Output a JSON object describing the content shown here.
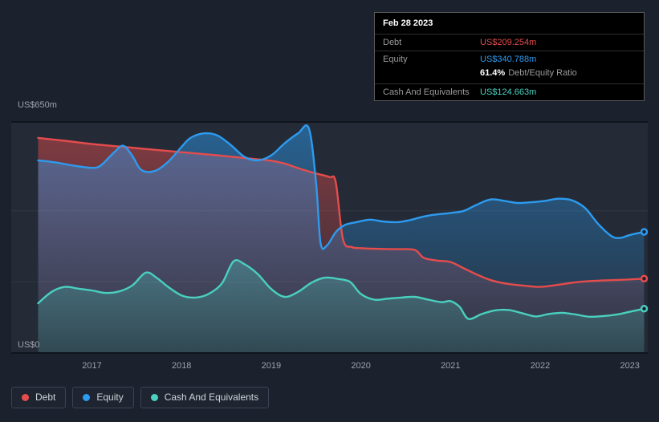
{
  "colors": {
    "background": "#1b222d",
    "plot_bg": "rgba(255,255,255,0.045)",
    "grid_strong": "#10141d",
    "grid_faint": "rgba(255,255,255,0.06)",
    "axis_text": "#9ba3af",
    "debt": "#e64c4c",
    "equity": "#2d9bf0",
    "cash": "#49d0bf",
    "tooltip_bg": "#000000",
    "tooltip_border": "#5a5a5a",
    "tooltip_label": "#9b9b9b",
    "legend_border": "#3a4354",
    "legend_text": "#ced3da"
  },
  "tooltip": {
    "date": "Feb 28 2023",
    "rows": [
      {
        "label": "Debt",
        "value": "US$209.254m",
        "color_key": "debt"
      },
      {
        "label": "Equity",
        "value": "US$340.788m",
        "color_key": "equity"
      },
      {
        "label": "Cash And Equivalents",
        "value": "US$124.663m",
        "color_key": "cash"
      }
    ],
    "ratio_value": "61.4%",
    "ratio_label": "Debt/Equity Ratio"
  },
  "legend": [
    {
      "label": "Debt",
      "color_key": "debt"
    },
    {
      "label": "Equity",
      "color_key": "equity"
    },
    {
      "label": "Cash And Equivalents",
      "color_key": "cash"
    }
  ],
  "chart_data": {
    "type": "area",
    "x_unit": "year",
    "xlim": [
      2016.1,
      2023.2
    ],
    "ylim": [
      0,
      650
    ],
    "x_ticks": [
      2017,
      2018,
      2019,
      2020,
      2021,
      2022,
      2023
    ],
    "y_axis_labels": {
      "top": "US$650m",
      "bottom": "US$0"
    },
    "grid_values": [
      200,
      400
    ],
    "legend_position": "bottom-left",
    "series": [
      {
        "name": "Debt",
        "color_key": "debt",
        "fill_opacity": [
          0.5,
          0.04
        ],
        "points": [
          [
            2016.4,
            605
          ],
          [
            2016.7,
            597
          ],
          [
            2017.0,
            588
          ],
          [
            2017.3,
            581
          ],
          [
            2017.6,
            574
          ],
          [
            2018.0,
            565
          ],
          [
            2018.4,
            556
          ],
          [
            2018.8,
            546
          ],
          [
            2019.0,
            541
          ],
          [
            2019.15,
            533
          ],
          [
            2019.3,
            520
          ],
          [
            2019.5,
            505
          ],
          [
            2019.65,
            495
          ],
          [
            2019.72,
            480
          ],
          [
            2019.8,
            320
          ],
          [
            2019.9,
            298
          ],
          [
            2020.0,
            295
          ],
          [
            2020.2,
            293
          ],
          [
            2020.4,
            292
          ],
          [
            2020.6,
            290
          ],
          [
            2020.7,
            268
          ],
          [
            2020.85,
            260
          ],
          [
            2021.0,
            256
          ],
          [
            2021.15,
            238
          ],
          [
            2021.3,
            220
          ],
          [
            2021.45,
            205
          ],
          [
            2021.6,
            196
          ],
          [
            2021.8,
            190
          ],
          [
            2022.0,
            186
          ],
          [
            2022.2,
            192
          ],
          [
            2022.4,
            199
          ],
          [
            2022.6,
            203
          ],
          [
            2022.8,
            205
          ],
          [
            2023.0,
            207
          ],
          [
            2023.16,
            209.254
          ]
        ]
      },
      {
        "name": "Equity",
        "color_key": "equity",
        "fill_opacity": [
          0.5,
          0.05
        ],
        "points": [
          [
            2016.4,
            542
          ],
          [
            2016.6,
            536
          ],
          [
            2016.8,
            527
          ],
          [
            2017.0,
            521
          ],
          [
            2017.1,
            528
          ],
          [
            2017.25,
            565
          ],
          [
            2017.35,
            583
          ],
          [
            2017.45,
            555
          ],
          [
            2017.55,
            515
          ],
          [
            2017.7,
            512
          ],
          [
            2017.85,
            538
          ],
          [
            2018.0,
            580
          ],
          [
            2018.1,
            605
          ],
          [
            2018.25,
            618
          ],
          [
            2018.4,
            612
          ],
          [
            2018.55,
            585
          ],
          [
            2018.7,
            552
          ],
          [
            2018.85,
            542
          ],
          [
            2019.0,
            556
          ],
          [
            2019.15,
            590
          ],
          [
            2019.3,
            618
          ],
          [
            2019.42,
            632
          ],
          [
            2019.5,
            480
          ],
          [
            2019.55,
            310
          ],
          [
            2019.62,
            302
          ],
          [
            2019.72,
            340
          ],
          [
            2019.82,
            360
          ],
          [
            2019.95,
            368
          ],
          [
            2020.1,
            375
          ],
          [
            2020.25,
            370
          ],
          [
            2020.4,
            368
          ],
          [
            2020.55,
            374
          ],
          [
            2020.7,
            384
          ],
          [
            2020.85,
            390
          ],
          [
            2021.0,
            394
          ],
          [
            2021.15,
            400
          ],
          [
            2021.3,
            418
          ],
          [
            2021.45,
            432
          ],
          [
            2021.6,
            428
          ],
          [
            2021.75,
            422
          ],
          [
            2021.9,
            424
          ],
          [
            2022.05,
            428
          ],
          [
            2022.2,
            434
          ],
          [
            2022.35,
            430
          ],
          [
            2022.5,
            408
          ],
          [
            2022.65,
            362
          ],
          [
            2022.8,
            328
          ],
          [
            2022.9,
            324
          ],
          [
            2023.0,
            332
          ],
          [
            2023.16,
            340.788
          ]
        ]
      },
      {
        "name": "Cash And Equivalents",
        "color_key": "cash",
        "fill_opacity": [
          0.55,
          0.14
        ],
        "points": [
          [
            2016.4,
            140
          ],
          [
            2016.55,
            172
          ],
          [
            2016.7,
            186
          ],
          [
            2016.85,
            181
          ],
          [
            2017.0,
            176
          ],
          [
            2017.15,
            169
          ],
          [
            2017.3,
            173
          ],
          [
            2017.45,
            190
          ],
          [
            2017.6,
            226
          ],
          [
            2017.72,
            212
          ],
          [
            2017.85,
            186
          ],
          [
            2018.0,
            162
          ],
          [
            2018.15,
            156
          ],
          [
            2018.3,
            166
          ],
          [
            2018.45,
            196
          ],
          [
            2018.58,
            258
          ],
          [
            2018.7,
            250
          ],
          [
            2018.85,
            222
          ],
          [
            2019.0,
            180
          ],
          [
            2019.15,
            158
          ],
          [
            2019.3,
            172
          ],
          [
            2019.45,
            198
          ],
          [
            2019.6,
            212
          ],
          [
            2019.75,
            208
          ],
          [
            2019.88,
            200
          ],
          [
            2020.0,
            166
          ],
          [
            2020.15,
            150
          ],
          [
            2020.3,
            153
          ],
          [
            2020.45,
            156
          ],
          [
            2020.6,
            158
          ],
          [
            2020.75,
            150
          ],
          [
            2020.9,
            143
          ],
          [
            2021.0,
            146
          ],
          [
            2021.1,
            130
          ],
          [
            2021.2,
            96
          ],
          [
            2021.35,
            110
          ],
          [
            2021.5,
            120
          ],
          [
            2021.65,
            121
          ],
          [
            2021.8,
            112
          ],
          [
            2021.95,
            103
          ],
          [
            2022.1,
            110
          ],
          [
            2022.25,
            113
          ],
          [
            2022.4,
            108
          ],
          [
            2022.55,
            102
          ],
          [
            2022.7,
            104
          ],
          [
            2022.85,
            108
          ],
          [
            2023.0,
            116
          ],
          [
            2023.16,
            124.663
          ]
        ]
      }
    ]
  }
}
